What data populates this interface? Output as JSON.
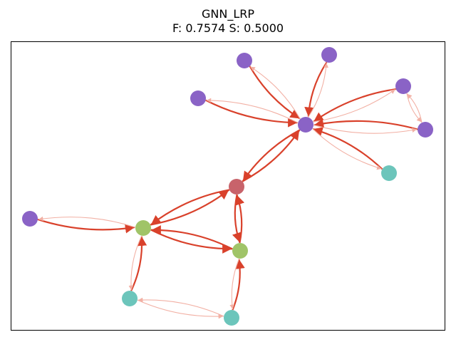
{
  "title": {
    "line1": "GNN_LRP",
    "line2": "F: 0.7574  S: 0.5000"
  },
  "colors": {
    "strong_edge": "#d9412b",
    "weak_edge": "#f2b0a4",
    "purple": "#8a63c6",
    "teal": "#6cc5bb",
    "green": "#a0c468",
    "red": "#c8636b"
  },
  "nodes": [
    {
      "id": "hub",
      "color": "purple"
    },
    {
      "id": "n1",
      "color": "purple"
    },
    {
      "id": "n2",
      "color": "purple"
    },
    {
      "id": "n3",
      "color": "purple"
    },
    {
      "id": "n4",
      "color": "purple"
    },
    {
      "id": "n5",
      "color": "purple"
    },
    {
      "id": "n6",
      "color": "teal"
    },
    {
      "id": "mid",
      "color": "red"
    },
    {
      "id": "g1",
      "color": "green"
    },
    {
      "id": "g2",
      "color": "green"
    },
    {
      "id": "left",
      "color": "purple"
    },
    {
      "id": "t1",
      "color": "teal"
    },
    {
      "id": "t2",
      "color": "teal"
    }
  ],
  "edges": [
    {
      "from": "n1",
      "to": "hub",
      "strength": "strong"
    },
    {
      "from": "hub",
      "to": "n1",
      "strength": "weak"
    },
    {
      "from": "n2",
      "to": "hub",
      "strength": "strong"
    },
    {
      "from": "hub",
      "to": "n2",
      "strength": "weak"
    },
    {
      "from": "n3",
      "to": "hub",
      "strength": "strong"
    },
    {
      "from": "hub",
      "to": "n3",
      "strength": "weak"
    },
    {
      "from": "n4",
      "to": "hub",
      "strength": "strong"
    },
    {
      "from": "hub",
      "to": "n4",
      "strength": "weak"
    },
    {
      "from": "n5",
      "to": "hub",
      "strength": "strong"
    },
    {
      "from": "hub",
      "to": "n5",
      "strength": "weak"
    },
    {
      "from": "n4",
      "to": "n5",
      "strength": "weak"
    },
    {
      "from": "n5",
      "to": "n4",
      "strength": "weak"
    },
    {
      "from": "n6",
      "to": "hub",
      "strength": "strong"
    },
    {
      "from": "hub",
      "to": "n6",
      "strength": "weak"
    },
    {
      "from": "hub",
      "to": "mid",
      "strength": "strong"
    },
    {
      "from": "mid",
      "to": "hub",
      "strength": "strong"
    },
    {
      "from": "mid",
      "to": "g1",
      "strength": "strong"
    },
    {
      "from": "g1",
      "to": "mid",
      "strength": "strong"
    },
    {
      "from": "mid",
      "to": "g2",
      "strength": "strong"
    },
    {
      "from": "g2",
      "to": "mid",
      "strength": "strong"
    },
    {
      "from": "g1",
      "to": "g2",
      "strength": "strong"
    },
    {
      "from": "g2",
      "to": "g1",
      "strength": "strong"
    },
    {
      "from": "left",
      "to": "g1",
      "strength": "strong"
    },
    {
      "from": "g1",
      "to": "left",
      "strength": "weak"
    },
    {
      "from": "t1",
      "to": "g1",
      "strength": "strong"
    },
    {
      "from": "g1",
      "to": "t1",
      "strength": "weak"
    },
    {
      "from": "t2",
      "to": "g2",
      "strength": "strong"
    },
    {
      "from": "g2",
      "to": "t2",
      "strength": "weak"
    },
    {
      "from": "t1",
      "to": "t2",
      "strength": "weak"
    },
    {
      "from": "t2",
      "to": "t1",
      "strength": "weak"
    }
  ]
}
